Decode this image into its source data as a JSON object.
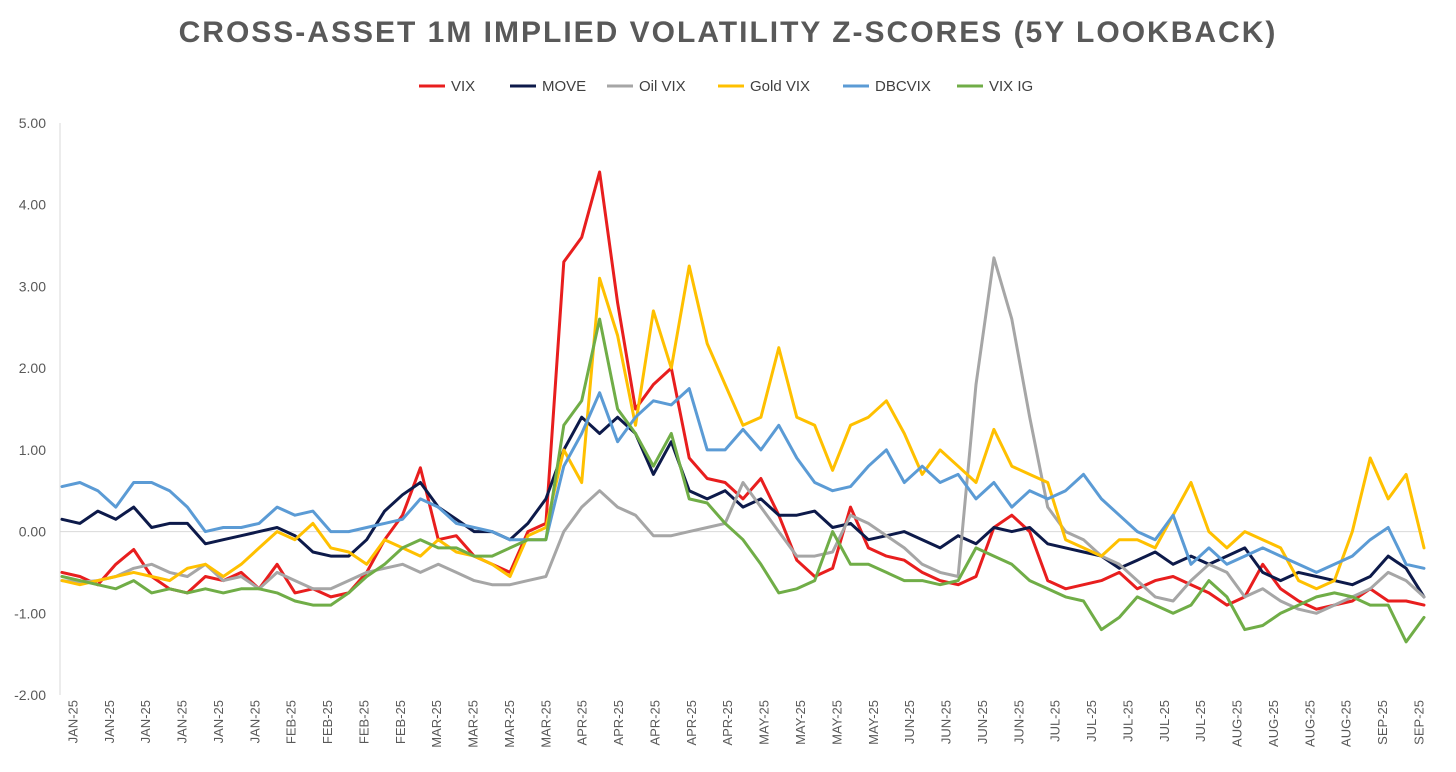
{
  "chart_data": {
    "type": "line",
    "title": "CROSS-ASSET 1M IMPLIED VOLATILITY Z-SCORES (5Y LOOKBACK)",
    "xlabel": "",
    "ylabel": "",
    "ylim": [
      -2.0,
      5.0
    ],
    "yticks": [
      "5.00",
      "4.00",
      "3.00",
      "2.00",
      "1.00",
      "0.00",
      "-1.00",
      "-2.00"
    ],
    "ytick_values": [
      5,
      4,
      3,
      2,
      1,
      0,
      -1,
      -2
    ],
    "grid": false,
    "legend_position": "top",
    "xticks": [
      "JAN-25",
      "JAN-25",
      "JAN-25",
      "JAN-25",
      "JAN-25",
      "JAN-25",
      "FEB-25",
      "FEB-25",
      "FEB-25",
      "FEB-25",
      "MAR-25",
      "MAR-25",
      "MAR-25",
      "MAR-25",
      "APR-25",
      "APR-25",
      "APR-25",
      "APR-25",
      "APR-25",
      "MAY-25",
      "MAY-25",
      "MAY-25",
      "MAY-25",
      "JUN-25",
      "JUN-25",
      "JUN-25",
      "JUN-25",
      "JUL-25",
      "JUL-25",
      "JUL-25",
      "JUL-25",
      "JUL-25",
      "AUG-25",
      "AUG-25",
      "AUG-25",
      "AUG-25",
      "SEP-25",
      "SEP-25"
    ],
    "x": [
      0,
      1,
      2,
      3,
      4,
      5,
      6,
      7,
      8,
      9,
      10,
      11,
      12,
      13,
      14,
      15,
      16,
      17,
      18,
      19,
      20,
      21,
      22,
      23,
      24,
      25,
      26,
      27,
      28,
      29,
      30,
      31,
      32,
      33,
      34,
      35,
      36,
      37,
      38,
      39,
      40,
      41,
      42,
      43,
      44,
      45,
      46,
      47,
      48,
      49,
      50,
      51,
      52,
      53,
      54,
      55,
      56,
      57,
      58,
      59,
      60,
      61,
      62,
      63,
      64,
      65,
      66,
      67,
      68,
      69,
      70,
      71,
      72,
      73,
      74,
      75,
      76
    ],
    "series": [
      {
        "name": "VIX",
        "color": "#e81e1e",
        "values": [
          -0.5,
          -0.55,
          -0.65,
          -0.4,
          -0.22,
          -0.55,
          -0.7,
          -0.75,
          -0.55,
          -0.6,
          -0.5,
          -0.7,
          -0.4,
          -0.75,
          -0.7,
          -0.8,
          -0.75,
          -0.5,
          -0.1,
          0.2,
          0.78,
          -0.1,
          -0.05,
          -0.3,
          -0.4,
          -0.5,
          0.0,
          0.1,
          3.3,
          3.6,
          4.4,
          2.8,
          1.5,
          1.8,
          2.0,
          0.9,
          0.65,
          0.6,
          0.4,
          0.65,
          0.2,
          -0.35,
          -0.55,
          -0.45,
          0.3,
          -0.2,
          -0.3,
          -0.35,
          -0.5,
          -0.6,
          -0.65,
          -0.55,
          0.05,
          0.2,
          0.0,
          -0.6,
          -0.7,
          -0.65,
          -0.6,
          -0.5,
          -0.7,
          -0.6,
          -0.55,
          -0.65,
          -0.75,
          -0.9,
          -0.8,
          -0.4,
          -0.7,
          -0.85,
          -0.95,
          -0.9,
          -0.85,
          -0.7,
          -0.85,
          -0.85,
          -0.9
        ]
      },
      {
        "name": "MOVE",
        "color": "#0d1a4a",
        "values": [
          0.15,
          0.1,
          0.25,
          0.15,
          0.3,
          0.05,
          0.1,
          0.1,
          -0.15,
          -0.1,
          -0.05,
          0.0,
          0.05,
          -0.05,
          -0.25,
          -0.3,
          -0.3,
          -0.1,
          0.25,
          0.45,
          0.6,
          0.3,
          0.15,
          0.0,
          0.0,
          -0.1,
          0.1,
          0.4,
          1.0,
          1.4,
          1.2,
          1.4,
          1.2,
          0.7,
          1.1,
          0.5,
          0.4,
          0.5,
          0.3,
          0.4,
          0.2,
          0.2,
          0.25,
          0.05,
          0.1,
          -0.1,
          -0.05,
          0.0,
          -0.1,
          -0.2,
          -0.05,
          -0.15,
          0.05,
          0.0,
          0.05,
          -0.15,
          -0.2,
          -0.25,
          -0.3,
          -0.45,
          -0.35,
          -0.25,
          -0.4,
          -0.3,
          -0.4,
          -0.3,
          -0.2,
          -0.5,
          -0.6,
          -0.5,
          -0.55,
          -0.6,
          -0.65,
          -0.55,
          -0.3,
          -0.45,
          -0.8
        ]
      },
      {
        "name": "Oil VIX",
        "color": "#a6a6a6",
        "values": [
          -0.6,
          -0.62,
          -0.6,
          -0.55,
          -0.45,
          -0.4,
          -0.5,
          -0.55,
          -0.4,
          -0.6,
          -0.55,
          -0.7,
          -0.5,
          -0.6,
          -0.7,
          -0.7,
          -0.6,
          -0.5,
          -0.45,
          -0.4,
          -0.5,
          -0.4,
          -0.5,
          -0.6,
          -0.65,
          -0.65,
          -0.6,
          -0.55,
          0.0,
          0.3,
          0.5,
          0.3,
          0.2,
          -0.05,
          -0.05,
          0.0,
          0.05,
          0.1,
          0.6,
          0.3,
          0.0,
          -0.3,
          -0.3,
          -0.25,
          0.2,
          0.1,
          -0.05,
          -0.2,
          -0.4,
          -0.5,
          -0.55,
          1.8,
          3.35,
          2.6,
          1.4,
          0.3,
          0.0,
          -0.1,
          -0.3,
          -0.4,
          -0.6,
          -0.8,
          -0.85,
          -0.6,
          -0.4,
          -0.5,
          -0.8,
          -0.7,
          -0.85,
          -0.95,
          -1.0,
          -0.9,
          -0.8,
          -0.7,
          -0.5,
          -0.6,
          -0.8
        ]
      },
      {
        "name": "Gold VIX",
        "color": "#ffc000",
        "values": [
          -0.6,
          -0.65,
          -0.6,
          -0.55,
          -0.5,
          -0.55,
          -0.6,
          -0.45,
          -0.4,
          -0.55,
          -0.4,
          -0.2,
          0.0,
          -0.1,
          0.1,
          -0.2,
          -0.25,
          -0.4,
          -0.1,
          -0.2,
          -0.3,
          -0.1,
          -0.25,
          -0.3,
          -0.4,
          -0.55,
          -0.05,
          0.05,
          1.0,
          0.6,
          3.1,
          2.4,
          1.3,
          2.7,
          2.0,
          3.25,
          2.3,
          1.8,
          1.3,
          1.4,
          2.25,
          1.4,
          1.3,
          0.75,
          1.3,
          1.4,
          1.6,
          1.2,
          0.7,
          1.0,
          0.8,
          0.6,
          1.25,
          0.8,
          0.7,
          0.6,
          -0.1,
          -0.2,
          -0.3,
          -0.1,
          -0.1,
          -0.2,
          0.2,
          0.6,
          0.0,
          -0.2,
          0.0,
          -0.1,
          -0.2,
          -0.6,
          -0.7,
          -0.6,
          0.0,
          0.9,
          0.4,
          0.7,
          -0.2
        ]
      },
      {
        "name": "DBCVIX",
        "color": "#5b9bd5",
        "values": [
          0.55,
          0.6,
          0.5,
          0.3,
          0.6,
          0.6,
          0.5,
          0.3,
          0.0,
          0.05,
          0.05,
          0.1,
          0.3,
          0.2,
          0.25,
          0.0,
          0.0,
          0.05,
          0.1,
          0.15,
          0.4,
          0.3,
          0.1,
          0.05,
          0.0,
          -0.1,
          -0.1,
          -0.1,
          0.8,
          1.2,
          1.7,
          1.1,
          1.4,
          1.6,
          1.55,
          1.75,
          1.0,
          1.0,
          1.25,
          1.0,
          1.3,
          0.9,
          0.6,
          0.5,
          0.55,
          0.8,
          1.0,
          0.6,
          0.8,
          0.6,
          0.7,
          0.4,
          0.6,
          0.3,
          0.5,
          0.4,
          0.5,
          0.7,
          0.4,
          0.2,
          0.0,
          -0.1,
          0.2,
          -0.4,
          -0.2,
          -0.4,
          -0.3,
          -0.2,
          -0.3,
          -0.4,
          -0.5,
          -0.4,
          -0.3,
          -0.1,
          0.05,
          -0.4,
          -0.45
        ]
      },
      {
        "name": "VIX IG",
        "color": "#70ad47",
        "values": [
          -0.55,
          -0.6,
          -0.65,
          -0.7,
          -0.6,
          -0.75,
          -0.7,
          -0.75,
          -0.7,
          -0.75,
          -0.7,
          -0.7,
          -0.75,
          -0.85,
          -0.9,
          -0.9,
          -0.75,
          -0.55,
          -0.4,
          -0.2,
          -0.1,
          -0.2,
          -0.2,
          -0.3,
          -0.3,
          -0.2,
          -0.1,
          -0.1,
          1.3,
          1.6,
          2.6,
          1.5,
          1.2,
          0.8,
          1.2,
          0.4,
          0.35,
          0.1,
          -0.1,
          -0.4,
          -0.75,
          -0.7,
          -0.6,
          0.0,
          -0.4,
          -0.4,
          -0.5,
          -0.6,
          -0.6,
          -0.65,
          -0.6,
          -0.2,
          -0.3,
          -0.4,
          -0.6,
          -0.7,
          -0.8,
          -0.85,
          -1.2,
          -1.05,
          -0.8,
          -0.9,
          -1.0,
          -0.9,
          -0.6,
          -0.8,
          -1.2,
          -1.15,
          -1.0,
          -0.9,
          -0.8,
          -0.75,
          -0.8,
          -0.9,
          -0.9,
          -1.35,
          -1.05
        ]
      }
    ]
  }
}
